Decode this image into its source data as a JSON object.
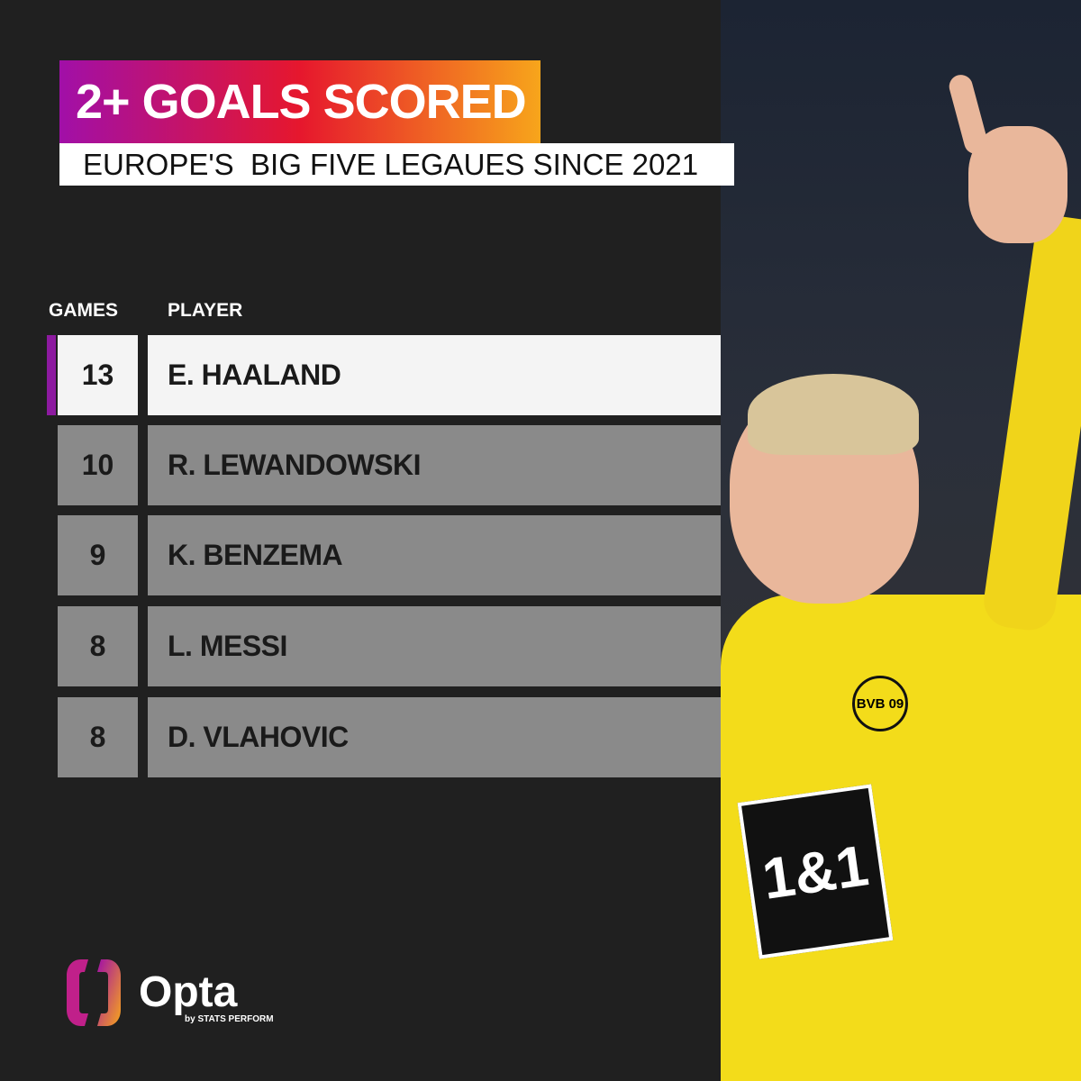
{
  "title": "2+ GOALS SCORED",
  "subtitle": "EUROPE'S  BIG FIVE LEGAUES SINCE 2021",
  "columns": {
    "games": "GAMES",
    "player": "PLAYER"
  },
  "colors": {
    "accent": "#8d1aa0",
    "gradient_start": "#a10fa8",
    "gradient_mid": "#e6172d",
    "gradient_end": "#f7a51b",
    "row": "#8a8a8a",
    "highlight_row": "#f4f4f4"
  },
  "chart_data": {
    "type": "table",
    "title": "2+ GOALS SCORED",
    "subtitle": "EUROPE'S  BIG FIVE LEGAUES SINCE 2021",
    "columns": [
      "GAMES",
      "PLAYER"
    ],
    "rows": [
      {
        "games": "13",
        "player": "E. HAALAND"
      },
      {
        "games": "10",
        "player": "R. LEWANDOWSKI"
      },
      {
        "games": "9",
        "player": "K. BENZEMA"
      },
      {
        "games": "8",
        "player": "L. MESSI"
      },
      {
        "games": "8",
        "player": "D. VLAHOVIC"
      }
    ]
  },
  "photo": {
    "sponsor": "1&1",
    "badge": "BVB 09"
  },
  "logo": {
    "name": "Opta",
    "tagline": "by STATS PERFORM"
  }
}
